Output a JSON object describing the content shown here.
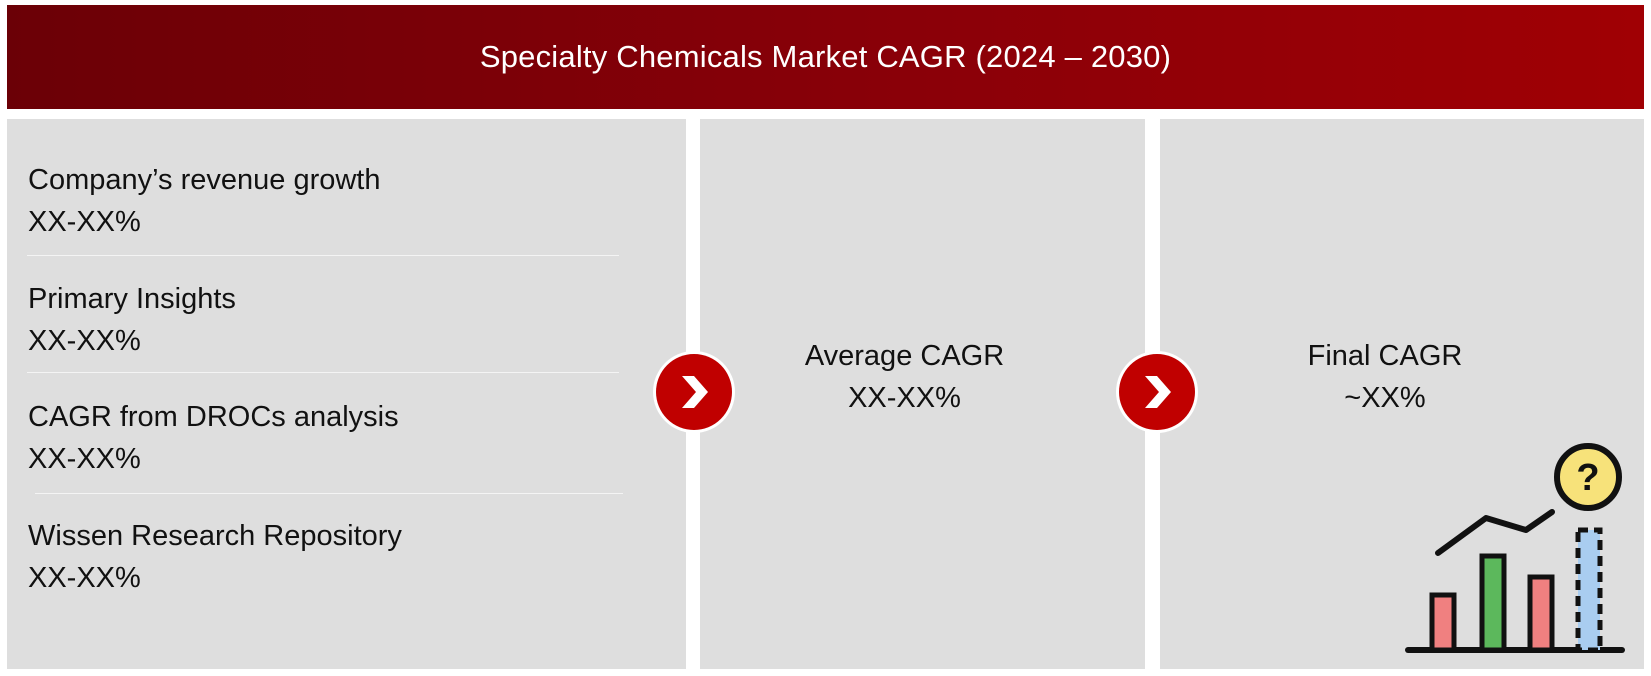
{
  "header": {
    "title": "Specialty Chemicals Market CAGR (2024 – 2030)"
  },
  "sources": [
    {
      "label": "Company’s revenue growth",
      "value": "XX-XX%"
    },
    {
      "label": "Primary Insights",
      "value": "XX-XX%"
    },
    {
      "label": "CAGR from DROCs analysis",
      "value": "XX-XX%"
    },
    {
      "label": "Wissen Research Repository",
      "value": "XX-XX%"
    }
  ],
  "average": {
    "label": "Average CAGR",
    "value": "XX-XX%"
  },
  "final": {
    "label": "Final CAGR",
    "value": "~XX%"
  },
  "icons": {
    "arrow": "chevron-right-icon",
    "chart": "growth-chart-question-icon"
  },
  "colors": {
    "header_dark": "#6b0006",
    "header_light": "#a00004",
    "panel": "#dedede",
    "arrow": "#c00000",
    "bar_red": "#f08080",
    "bar_green": "#5cb85c",
    "bar_blue": "#a9cdf0",
    "question_bubble": "#f7e27a"
  }
}
